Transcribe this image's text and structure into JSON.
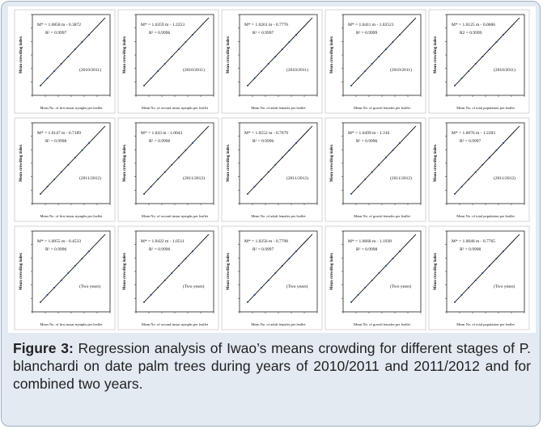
{
  "panels": [
    {
      "equation": "M* = 1.0858 m - 0.3872",
      "r2": "R² = 0.9997",
      "period": "(2010/2011)",
      "x_label": "Mean No. of first instar nymphs per leaflet",
      "y_label": "Mean crowding index"
    },
    {
      "equation": "M* = 1.0359 m - 1.2253",
      "r2": "R² = 0.9996",
      "period": "(2010/2011)",
      "x_label": "Mean No. of second instar nymphs per leaflet",
      "y_label": "Mean crowding index"
    },
    {
      "equation": "M* = 1.0261 m - 0.7776",
      "r2": "R² = 0.9997",
      "period": "(2010/2011)",
      "x_label": "Mean No. of adult females per leaflet",
      "y_label": "Mean crowding index"
    },
    {
      "equation": "M* = 1.0411 m - 1.02521",
      "r2": "R² = 0.9999",
      "period": "(2010/2011)",
      "x_label": "Mean No. of gravid females per leaflet",
      "y_label": "Mean crowding index"
    },
    {
      "equation": "M* = 1.0125 m - 0.0606",
      "r2": "R2 = 0.9999",
      "period": "(2010/2011)",
      "x_label": "Mean No. of total population per leaflet",
      "y_label": "Mean crowding index"
    },
    {
      "equation": "M* = 1.0147 m - 0.7189",
      "r2": "R² = 0.9998",
      "period": "(2011/2012)",
      "x_label": "Mean No. of first instar nymphs per leaflet",
      "y_label": "Mean crowding index"
    },
    {
      "equation": "M* = 1.043 m - 1.0043",
      "r2": "R² = 0.9996",
      "period": "(2011/2012)",
      "x_label": "Mean No. of second instar nymphs per leaflet",
      "y_label": "Mean crowding index"
    },
    {
      "equation": "M* = 1.0552 m - 0.7679",
      "r2": "R² = 0.9996",
      "period": "(2011/2012)",
      "x_label": "Mean No. of adult females per leaflet",
      "y_label": "Mean crowding index"
    },
    {
      "equation": "M* = 1.0499 m - 1.316",
      "r2": "R² = 0.9996",
      "period": "(2011/2012)",
      "x_label": "Mean No. of gravid females per leaflet",
      "y_label": "Mean crowding index"
    },
    {
      "equation": "M* = 1.0076 m - 1.2283",
      "r2": "R² = 0.9997",
      "period": "(2011/2012)",
      "x_label": "Mean No. of total population per leaflet",
      "y_label": "Mean crowding index"
    },
    {
      "equation": "M* = 1.0055 m - 0.4533",
      "r2": "R² = 0.9996",
      "period": "(Two years)",
      "x_label": "Mean No. of first instar nymphs per leaflet",
      "y_label": "Mean crowding index"
    },
    {
      "equation": "M* = 1.0422 m - 1.0511",
      "r2": "R² = 0.9996",
      "period": "(Two years)",
      "x_label": "Mean No. of second instar nymphs per leaflet",
      "y_label": "Mean crowding index"
    },
    {
      "equation": "M* = 1.0256 m - 0.7798",
      "r2": "R² = 0.9997",
      "period": "(Two years)",
      "x_label": "Mean No. of adult females per leaflet",
      "y_label": "Mean crowding index"
    },
    {
      "equation": "M* = 1.0668 m - 1.1938",
      "r2": "R² = 0.9998",
      "period": "(Two years)",
      "x_label": "Mean No. of gravid females per leaflet",
      "y_label": "Mean crowding index"
    },
    {
      "equation": "M* = 1.0048 m - 0.7765",
      "r2": "R² = 0.9998",
      "period": "(Two years)",
      "x_label": "Mean No. of total population per leaflet",
      "y_label": "Mean crowding index"
    }
  ],
  "caption": {
    "label": "Figure 3:",
    "text": "Regression analysis of Iwao’s means crowding for different stages of P. blanchardi on date palm trees during years of 2010/2011 and 2011/2012 and for combined two years."
  }
}
